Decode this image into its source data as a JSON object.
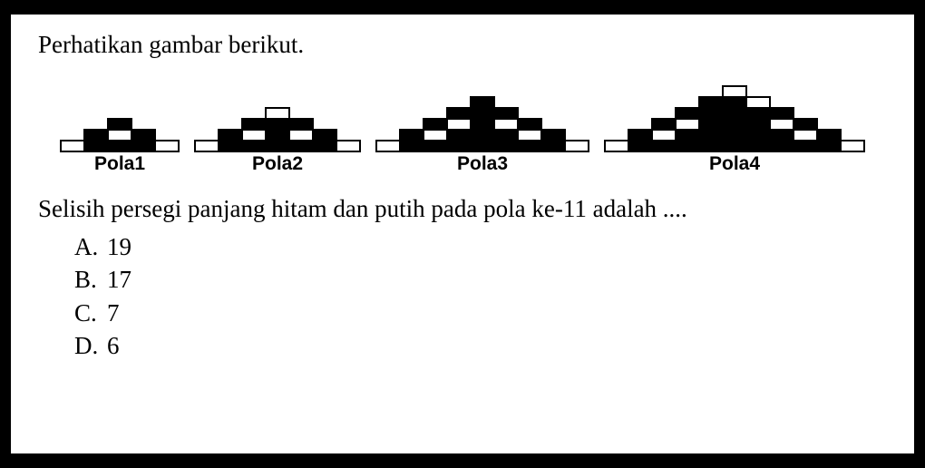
{
  "instruction": "Perhatikan gambar berikut.",
  "question": "Selisih persegi panjang hitam dan putih pada pola ke-11 adalah ....",
  "options": [
    {
      "letter": "A.",
      "text": "19"
    },
    {
      "letter": "B.",
      "text": "17"
    },
    {
      "letter": "C.",
      "text": "7"
    },
    {
      "letter": "D.",
      "text": "6"
    }
  ],
  "brick": {
    "width": 28,
    "height": 14,
    "border_color": "#000000",
    "black": "#000000",
    "white": "#ffffff"
  },
  "label_fontsize": 21,
  "body_fontsize": 27,
  "background_color": "#ffffff",
  "outer_background": "#000000",
  "patterns": [
    {
      "label": "Pola1",
      "rows": [
        [
          "b"
        ],
        [
          "b",
          "w",
          "b"
        ],
        [
          "w",
          "b",
          "b",
          "b",
          "w"
        ]
      ]
    },
    {
      "label": "Pola2",
      "rows": [
        [
          "w"
        ],
        [
          "b",
          "b",
          "b"
        ],
        [
          "b",
          "w",
          "b",
          "w",
          "b"
        ],
        [
          "w",
          "b",
          "b",
          "b",
          "b",
          "b",
          "w"
        ]
      ]
    },
    {
      "label": "Pola3",
      "rows": [
        [
          "b"
        ],
        [
          "b",
          "b",
          "b"
        ],
        [
          "b",
          "w",
          "b",
          "w",
          "b"
        ],
        [
          "b",
          "w",
          "b",
          "b",
          "b",
          "w",
          "b"
        ],
        [
          "w",
          "b",
          "b",
          "b",
          "b",
          "b",
          "b",
          "b",
          "w"
        ]
      ]
    },
    {
      "label": "Pola4",
      "rows": [
        [
          "w"
        ],
        [
          "b",
          "b",
          "w"
        ],
        [
          "b",
          "b",
          "b",
          "b",
          "b"
        ],
        [
          "b",
          "w",
          "b",
          "b",
          "b",
          "w",
          "b"
        ],
        [
          "b",
          "w",
          "b",
          "b",
          "b",
          "b",
          "b",
          "w",
          "b"
        ],
        [
          "w",
          "b",
          "b",
          "b",
          "b",
          "b",
          "b",
          "b",
          "b",
          "b",
          "w"
        ]
      ]
    }
  ]
}
